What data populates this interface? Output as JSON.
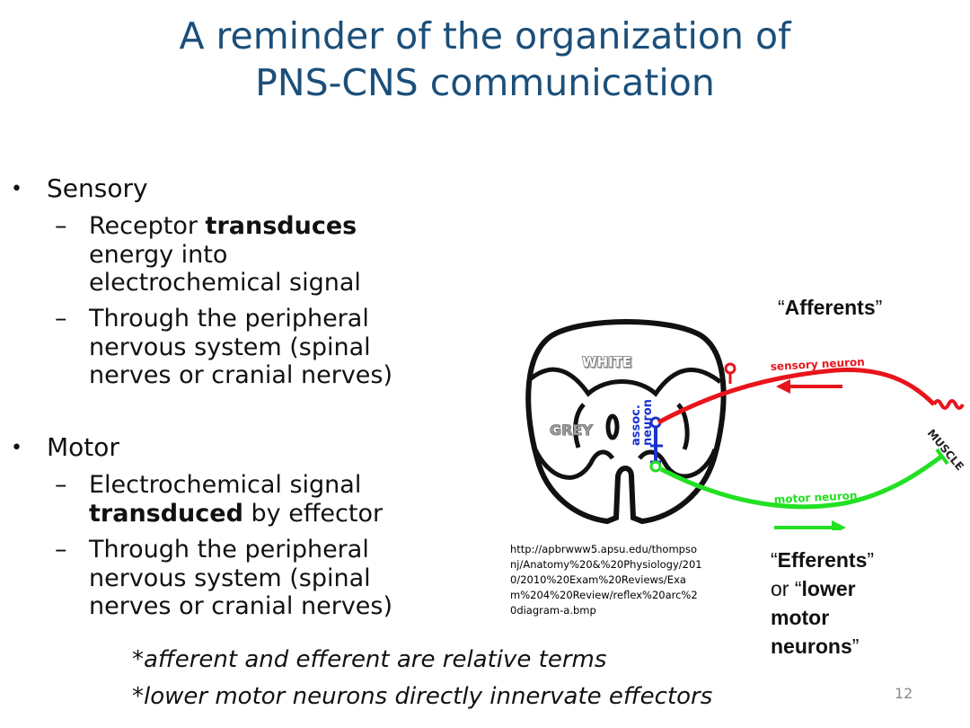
{
  "title": {
    "line1": "A reminder of the organization of",
    "line2": "PNS-CNS communication"
  },
  "sensory": {
    "label": "Sensory",
    "items": [
      {
        "pre": "Receptor ",
        "bold": "transduces",
        "post_lines": [
          "energy into",
          "electrochemical signal"
        ]
      },
      {
        "lines": [
          "Through the peripheral",
          "nervous system (spinal",
          "nerves or cranial nerves)"
        ]
      }
    ]
  },
  "motor": {
    "label": "Motor",
    "items": [
      {
        "line1": "Electrochemical signal",
        "bold": "transduced",
        "post": " by effector"
      },
      {
        "lines": [
          "Through the peripheral",
          "nervous system (spinal",
          "nerves or cranial nerves)"
        ]
      }
    ]
  },
  "diagram": {
    "white_label": "WHITE",
    "grey_label": "GREY",
    "assoc_label_1": "assoc.",
    "assoc_label_2": "neuron",
    "sensory_label": "sensory neuron",
    "motor_label": "motor neuron",
    "muscle_label": "MUSCLE",
    "colors": {
      "sensory": "#e8141c",
      "motor": "#22e022",
      "assoc": "#1a33cc",
      "outline": "#111111"
    }
  },
  "source_url": "http://apbrwww5.apsu.edu/thompsonj/Anatomy%20&%20Physiology/2010/2010%20Exam%20Reviews/Exam%204%20Review/reflex%20arc%20diagram-a.bmp",
  "afferents": {
    "open": "“",
    "word": "Afferents",
    "close": "”"
  },
  "efferents": {
    "line1_open": "“",
    "line1_word": "Efferents",
    "line1_close": "”",
    "line2_pre": "or “",
    "line2_word": "lower",
    "line3": "motor",
    "line4_word": "neurons",
    "line4_close": "”"
  },
  "notes": [
    "*afferent and efferent are relative terms",
    "*lower motor neurons directly innervate effectors"
  ],
  "page_number": "12"
}
